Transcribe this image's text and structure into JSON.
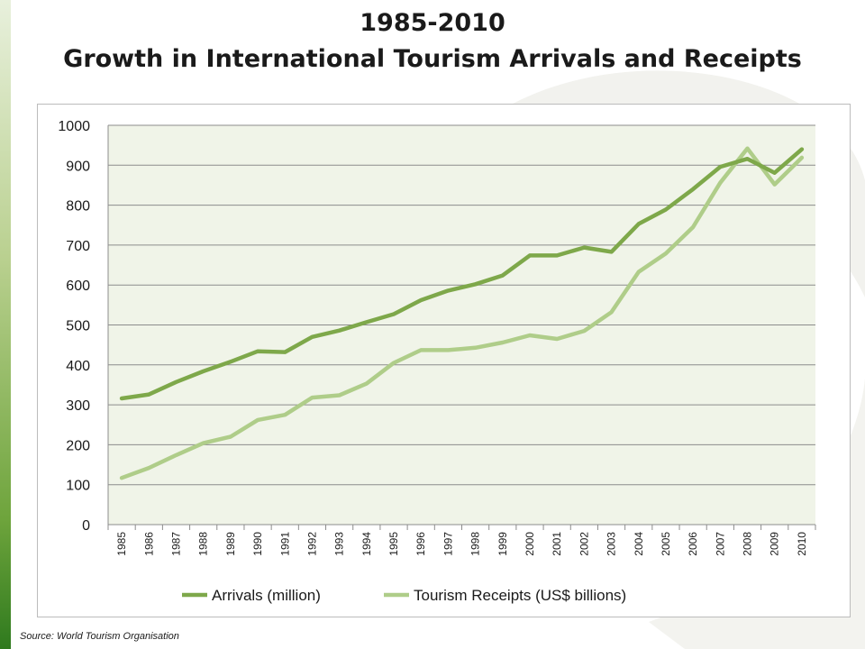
{
  "title_line1": "1985-2010",
  "title_line2": "Growth in International Tourism Arrivals and Receipts",
  "source": "Source: World Tourism Organisation",
  "colors": {
    "arrivals": "#7ea84a",
    "receipts": "#afcd89",
    "plot_bg": "#f0f4e8",
    "grid": "#8c8c8c"
  },
  "chart_data": {
    "type": "line",
    "title": "",
    "xlabel": "",
    "ylabel": "",
    "ylim": [
      0,
      1000
    ],
    "yticks": [
      "0",
      "100",
      "200",
      "300",
      "400",
      "500",
      "600",
      "700",
      "800",
      "900",
      "1000"
    ],
    "grid": true,
    "legend_position": "bottom",
    "categories": [
      "1985",
      "1986",
      "1987",
      "1988",
      "1989",
      "1990",
      "1991",
      "1992",
      "1993",
      "1994",
      "1995",
      "1996",
      "1997",
      "1998",
      "1999",
      "2000",
      "2001",
      "2002",
      "2003",
      "2004",
      "2005",
      "2006",
      "2007",
      "2008",
      "2009",
      "2010"
    ],
    "series": [
      {
        "name": "Arrivals (million)",
        "values": [
          316,
          326,
          357,
          384,
          408,
          434,
          432,
          470,
          486,
          507,
          527,
          562,
          586,
          602,
          624,
          674,
          674,
          694,
          683,
          753,
          789,
          840,
          896,
          916,
          881,
          940
        ]
      },
      {
        "name": "Tourism Receipts (US$ billions)",
        "values": [
          117,
          142,
          174,
          204,
          220,
          262,
          275,
          318,
          324,
          353,
          405,
          437,
          437,
          443,
          456,
          474,
          465,
          485,
          532,
          633,
          679,
          745,
          856,
          942,
          852,
          919
        ]
      }
    ]
  }
}
